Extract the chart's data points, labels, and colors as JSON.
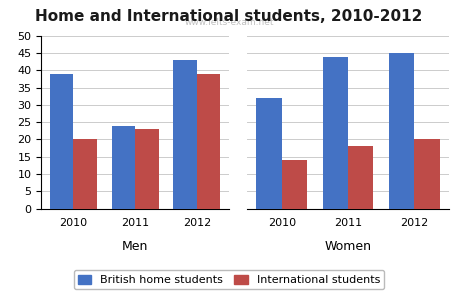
{
  "title": "Home and International students, 2010-2012",
  "watermark": "www.ielts-exam.net",
  "groups": [
    "Men",
    "Women"
  ],
  "years": [
    "2010",
    "2011",
    "2012"
  ],
  "british_home": {
    "Men": [
      39,
      24,
      43
    ],
    "Women": [
      32,
      44,
      45
    ]
  },
  "international": {
    "Men": [
      20,
      23,
      39
    ],
    "Women": [
      14,
      18,
      20
    ]
  },
  "british_color": "#4472C4",
  "international_color": "#BE4B48",
  "ylim": [
    0,
    50
  ],
  "yticks": [
    0,
    5,
    10,
    15,
    20,
    25,
    30,
    35,
    40,
    45,
    50
  ],
  "bar_width": 0.38,
  "legend_labels": [
    "British home students",
    "International students"
  ],
  "title_fontsize": 11,
  "tick_fontsize": 8,
  "group_label_fontsize": 9,
  "legend_fontsize": 8,
  "background_color": "#FFFFFF",
  "grid_color": "#CCCCCC"
}
